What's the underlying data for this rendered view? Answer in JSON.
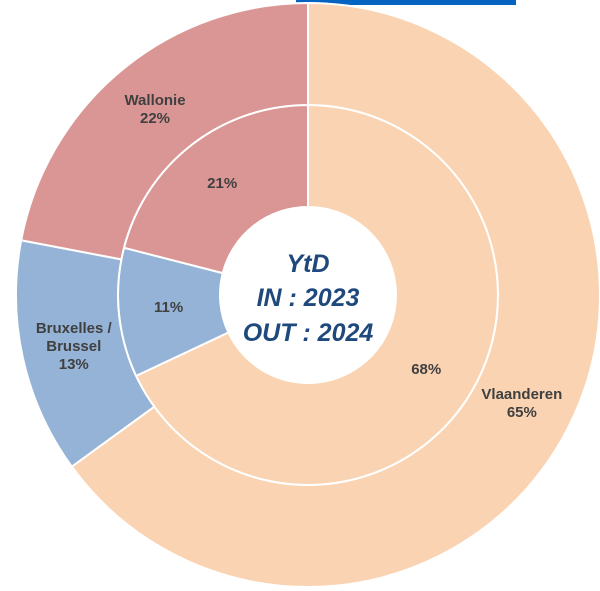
{
  "chart_data": {
    "type": "nested-donut",
    "title": "YtD",
    "categories": [
      "Vlaanderen",
      "Bruxelles / Brussel",
      "Wallonie"
    ],
    "colors": [
      "#fad3b2",
      "#95b3d7",
      "#d99694"
    ],
    "series": [
      {
        "name": "IN : 2023",
        "values": [
          68,
          11,
          21
        ],
        "value_labels": [
          "68%",
          "11%",
          "21%"
        ]
      },
      {
        "name": "OUT : 2024",
        "values": [
          65,
          13,
          22
        ],
        "value_labels": [
          "65%",
          "13%",
          "22%"
        ]
      }
    ]
  }
}
